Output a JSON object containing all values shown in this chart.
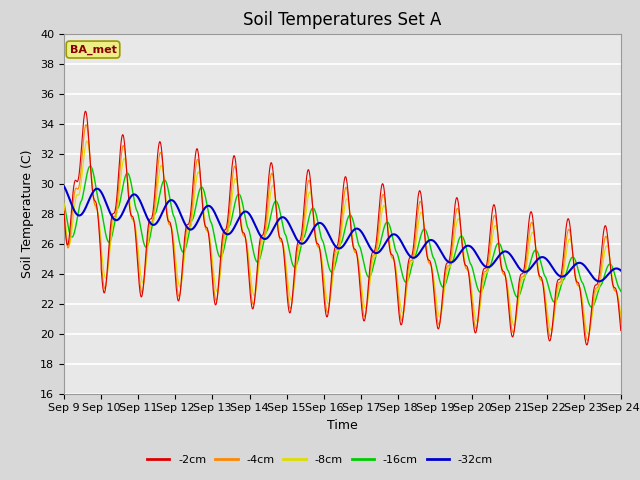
{
  "title": "Soil Temperatures Set A",
  "xlabel": "Time",
  "ylabel": "Soil Temperature (C)",
  "ylim": [
    16,
    40
  ],
  "yticks": [
    16,
    18,
    20,
    22,
    24,
    26,
    28,
    30,
    32,
    34,
    36,
    38,
    40
  ],
  "xtick_labels": [
    "Sep 9",
    "Sep 10",
    "Sep 11",
    "Sep 12",
    "Sep 13",
    "Sep 14",
    "Sep 15",
    "Sep 16",
    "Sep 17",
    "Sep 18",
    "Sep 19",
    "Sep 20",
    "Sep 21",
    "Sep 22",
    "Sep 23",
    "Sep 24"
  ],
  "series_colors": [
    "#dd0000",
    "#ff8800",
    "#dddd00",
    "#00cc00",
    "#0000cc"
  ],
  "series_labels": [
    "-2cm",
    "-4cm",
    "-8cm",
    "-16cm",
    "-32cm"
  ],
  "legend_label": "BA_met",
  "plot_bg_color": "#e8e8e8",
  "grid_color": "#ffffff",
  "fig_bg_color": "#d8d8d8",
  "title_fontsize": 12,
  "axis_fontsize": 9,
  "tick_fontsize": 8
}
